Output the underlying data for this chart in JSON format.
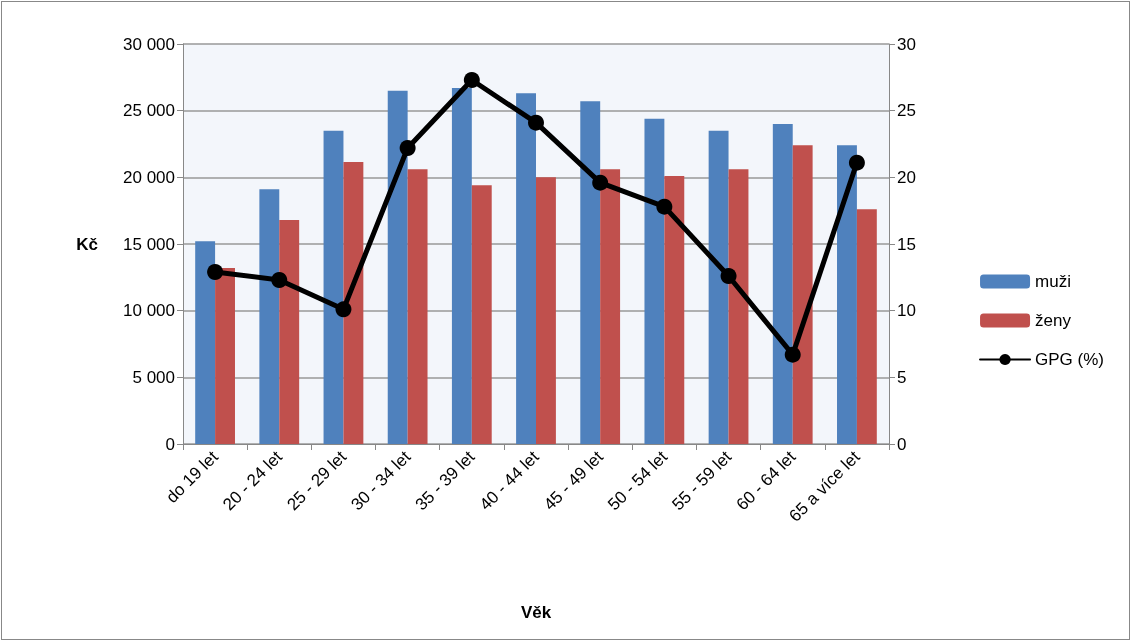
{
  "chart_data": {
    "type": "bar",
    "xlabel": "Věk",
    "ylabel": "Kč",
    "categories": [
      "do 19 let",
      "20 - 24 let",
      "25 - 29 let",
      "30 - 34 let",
      "35 - 39 let",
      "40 - 44 let",
      "45 - 49 let",
      "50 - 54 let",
      "55 - 59 let",
      "60 - 64 let",
      "65 a více let"
    ],
    "series": [
      {
        "name": "muži",
        "color": "#4f81bd",
        "values": [
          15200,
          19100,
          23500,
          26500,
          26700,
          26300,
          25700,
          24400,
          23500,
          24000,
          22400
        ]
      },
      {
        "name": "ženy",
        "color": "#c0504d",
        "values": [
          13200,
          16800,
          21150,
          20600,
          19400,
          20000,
          20600,
          20100,
          20600,
          22400,
          17600
        ]
      },
      {
        "name": "GPG (%)",
        "type": "line",
        "axis": "y2",
        "color": "#000000",
        "marker": "circle",
        "line_style": "solid",
        "values": [
          12.9,
          12.3,
          10.1,
          22.2,
          27.3,
          24.1,
          19.6,
          17.8,
          12.6,
          6.7,
          21.1
        ]
      }
    ],
    "ylim": [
      0,
      30000
    ],
    "yticks": [
      {
        "value": 0,
        "label": "0"
      },
      {
        "value": 5000,
        "label": "5 000"
      },
      {
        "value": 10000,
        "label": "10 000"
      },
      {
        "value": 15000,
        "label": "15 000"
      },
      {
        "value": 20000,
        "label": "20 000"
      },
      {
        "value": 25000,
        "label": "25 000"
      },
      {
        "value": 30000,
        "label": "30 000"
      }
    ],
    "y2lim": [
      0,
      30
    ],
    "y2ticks": [
      0,
      5,
      10,
      15,
      20,
      25,
      30
    ],
    "grid": "y",
    "legend": "right"
  }
}
